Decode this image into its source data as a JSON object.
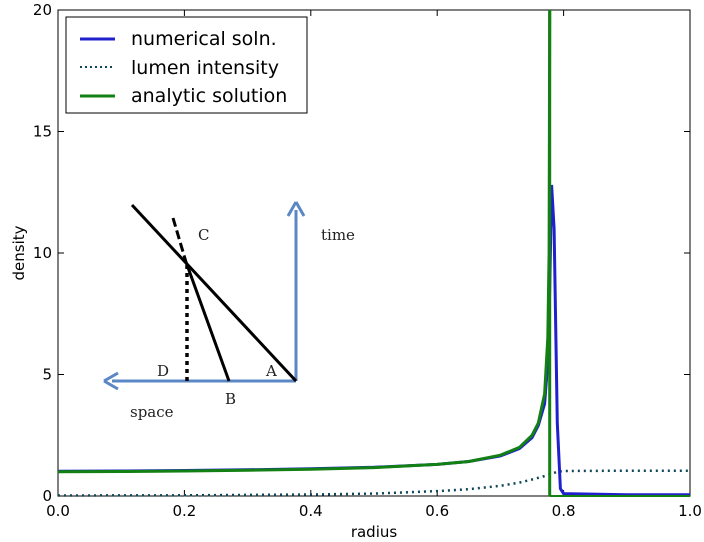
{
  "chart_data": {
    "type": "line",
    "xlabel": "radius",
    "ylabel": "density",
    "xlim": [
      0.0,
      1.0
    ],
    "ylim": [
      0,
      20
    ],
    "x_ticks": [
      "0.0",
      "0.2",
      "0.4",
      "0.6",
      "0.8",
      "1.0"
    ],
    "y_ticks": [
      "0",
      "5",
      "10",
      "15",
      "20"
    ],
    "grid": false,
    "legend_position": "top-left",
    "series": [
      {
        "name": "numerical soln.",
        "color": "#1f22cc",
        "style": "solid",
        "points": [
          [
            0.0,
            1.02
          ],
          [
            0.1,
            1.03
          ],
          [
            0.2,
            1.05
          ],
          [
            0.3,
            1.08
          ],
          [
            0.4,
            1.12
          ],
          [
            0.5,
            1.18
          ],
          [
            0.6,
            1.3
          ],
          [
            0.65,
            1.42
          ],
          [
            0.7,
            1.65
          ],
          [
            0.73,
            1.95
          ],
          [
            0.75,
            2.4
          ],
          [
            0.76,
            2.9
          ],
          [
            0.77,
            3.8
          ],
          [
            0.775,
            5.5
          ],
          [
            0.778,
            8.5
          ],
          [
            0.781,
            12.8
          ],
          [
            0.785,
            11.0
          ],
          [
            0.79,
            3.0
          ],
          [
            0.795,
            0.3
          ],
          [
            0.8,
            0.1
          ],
          [
            0.9,
            0.05
          ],
          [
            1.0,
            0.05
          ]
        ]
      },
      {
        "name": "lumen intensity",
        "color": "#0e4757",
        "style": "dotted",
        "points": [
          [
            0.0,
            0.02
          ],
          [
            0.2,
            0.03
          ],
          [
            0.4,
            0.06
          ],
          [
            0.5,
            0.1
          ],
          [
            0.6,
            0.2
          ],
          [
            0.65,
            0.28
          ],
          [
            0.7,
            0.42
          ],
          [
            0.73,
            0.55
          ],
          [
            0.75,
            0.68
          ],
          [
            0.77,
            0.82
          ],
          [
            0.78,
            0.9
          ],
          [
            0.79,
            1.0
          ],
          [
            0.8,
            1.03
          ],
          [
            0.9,
            1.04
          ],
          [
            1.0,
            1.04
          ]
        ]
      },
      {
        "name": "analytic solution",
        "color": "#128012",
        "style": "solid",
        "points": [
          [
            0.0,
            1.0
          ],
          [
            0.1,
            1.01
          ],
          [
            0.2,
            1.03
          ],
          [
            0.3,
            1.06
          ],
          [
            0.4,
            1.1
          ],
          [
            0.5,
            1.17
          ],
          [
            0.6,
            1.3
          ],
          [
            0.65,
            1.42
          ],
          [
            0.7,
            1.68
          ],
          [
            0.73,
            2.0
          ],
          [
            0.75,
            2.5
          ],
          [
            0.76,
            3.0
          ],
          [
            0.77,
            4.2
          ],
          [
            0.775,
            6.5
          ],
          [
            0.777,
            10.0
          ],
          [
            0.778,
            20.0
          ]
        ],
        "vertical_drops": [
          0.778
        ]
      }
    ]
  },
  "inset": {
    "labels": [
      "A",
      "B",
      "C",
      "D"
    ],
    "axis_labels": {
      "time": "time",
      "space": "space"
    }
  }
}
